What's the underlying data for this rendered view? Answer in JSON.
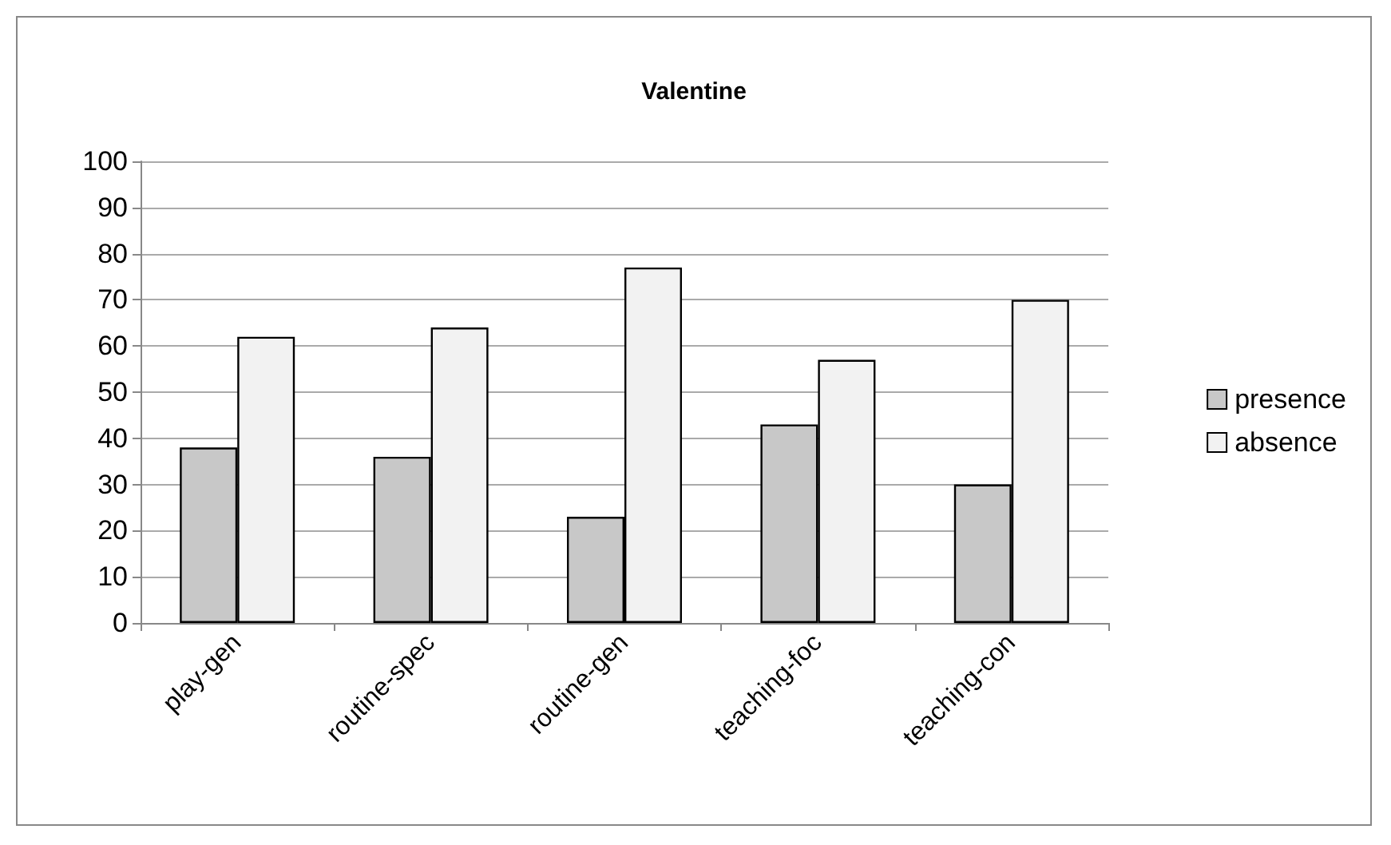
{
  "chart_data": {
    "type": "bar",
    "title": "Valentine",
    "categories": [
      "play-gen",
      "routine-spec",
      "routine-gen",
      "teaching-foc",
      "teaching-con"
    ],
    "series": [
      {
        "name": "presence",
        "color": "#c8c8c8",
        "values": [
          38,
          36,
          23,
          43,
          30
        ]
      },
      {
        "name": "absence",
        "color": "#f2f2f2",
        "values": [
          62,
          64,
          77,
          57,
          70
        ]
      }
    ],
    "ylim": [
      0,
      100
    ],
    "yticks": [
      0,
      10,
      20,
      30,
      40,
      50,
      60,
      70,
      80,
      90,
      100
    ],
    "grid": "y",
    "legend": "right"
  }
}
